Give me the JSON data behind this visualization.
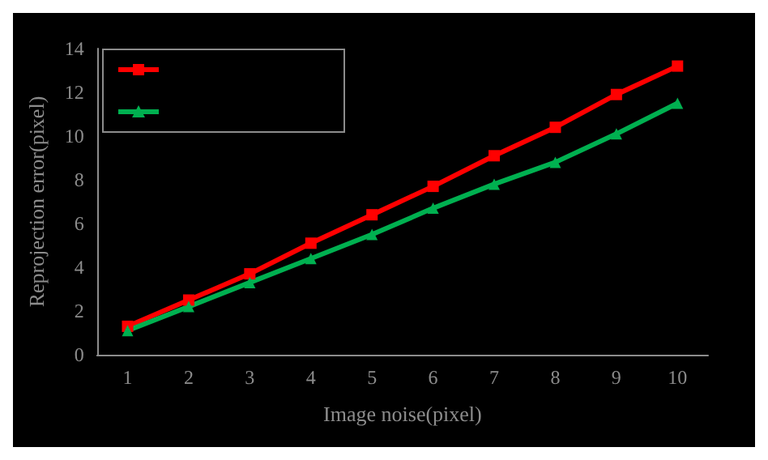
{
  "chart_data": {
    "type": "line",
    "xlabel": "Image noise(pixel)",
    "ylabel": "Reprojection error(pixel)",
    "categories": [
      "1",
      "2",
      "3",
      "4",
      "5",
      "6",
      "7",
      "8",
      "9",
      "10"
    ],
    "series": [
      {
        "color": "#ff0000",
        "marker": "square",
        "values": [
          1.3,
          2.5,
          3.7,
          5.1,
          6.4,
          7.7,
          9.1,
          10.4,
          11.9,
          13.2
        ]
      },
      {
        "color": "#00b050",
        "marker": "triangle",
        "values": [
          1.1,
          2.2,
          3.3,
          4.4,
          5.5,
          6.7,
          7.8,
          8.8,
          10.1,
          11.5
        ]
      }
    ],
    "ylim": [
      0,
      14
    ],
    "yticks": [
      0,
      2,
      4,
      6,
      8,
      10,
      12,
      14
    ],
    "grid": false,
    "line_style": "solid"
  }
}
